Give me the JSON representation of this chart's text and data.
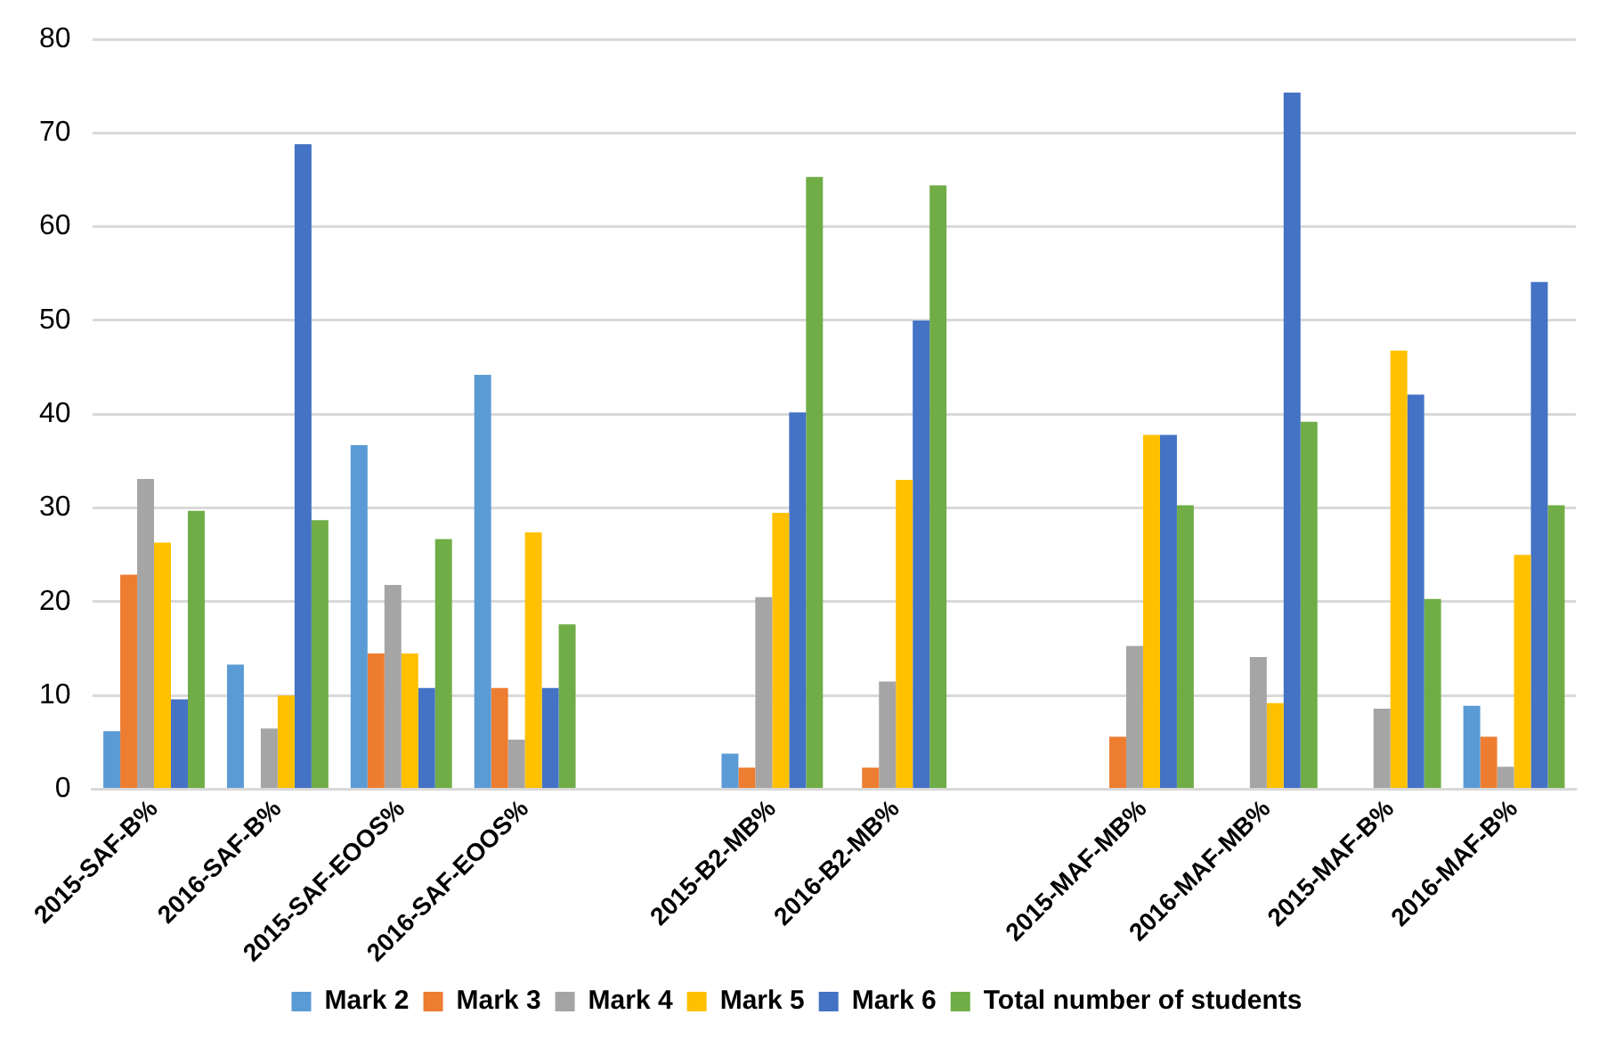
{
  "chart_data": {
    "type": "bar",
    "categories": [
      "2015-SAF-B%",
      "2016-SAF-B%",
      "2015-SAF-EOOS%",
      "2016-SAF-EOOS%",
      null,
      "2015-B2-MB%",
      "2016-B2-MB%",
      null,
      "2015-MAF-MB%",
      "2016-MAF-MB%",
      "2015-MAF-B%",
      "2016-MAF-B%"
    ],
    "series": [
      {
        "name": "Mark 2",
        "color": "#5b9bd5",
        "values": [
          6.2,
          13.3,
          36.7,
          44.2,
          null,
          3.8,
          0,
          null,
          0,
          0,
          0,
          8.9
        ]
      },
      {
        "name": "Mark 3",
        "color": "#ed7d31",
        "values": [
          22.9,
          0,
          14.5,
          10.8,
          null,
          2.3,
          2.3,
          null,
          5.6,
          0,
          0,
          5.6
        ]
      },
      {
        "name": "Mark 4",
        "color": "#a5a5a5",
        "values": [
          33.1,
          6.5,
          21.8,
          5.3,
          null,
          20.5,
          11.5,
          null,
          15.3,
          14.1,
          8.6,
          2.4
        ]
      },
      {
        "name": "Mark 5",
        "color": "#ffc000",
        "values": [
          26.3,
          10,
          14.5,
          27.4,
          null,
          29.5,
          33,
          null,
          37.8,
          9.2,
          46.8,
          25
        ]
      },
      {
        "name": "Mark 6",
        "color": "#4472c4",
        "values": [
          9.6,
          68.8,
          10.8,
          10.8,
          null,
          40.2,
          50,
          null,
          37.8,
          74.3,
          42.1,
          54.1
        ]
      },
      {
        "name": "Total number of students",
        "color": "#70ad47",
        "values": [
          29.7,
          28.7,
          26.7,
          17.6,
          null,
          65.3,
          64.4,
          null,
          30.3,
          39.2,
          20.3,
          30.3
        ]
      }
    ],
    "ylim": [
      0,
      80
    ],
    "yticks": [
      0,
      10,
      20,
      30,
      40,
      50,
      60,
      70,
      80
    ],
    "grid": "y",
    "legend": "bottom"
  }
}
